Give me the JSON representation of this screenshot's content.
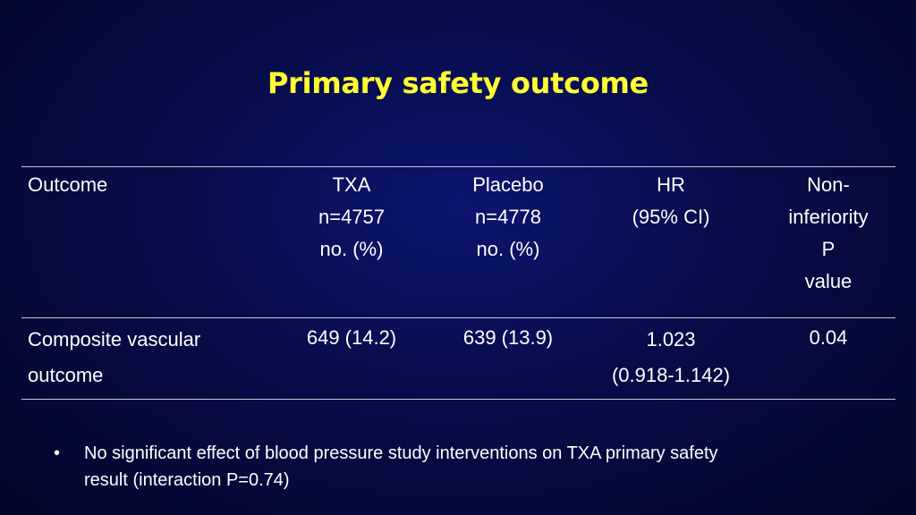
{
  "slide": {
    "title": "Primary safety outcome"
  },
  "table": {
    "headers": {
      "outcome": [
        "Outcome"
      ],
      "txa": [
        "TXA",
        "n=4757",
        "no. (%)"
      ],
      "placebo": [
        "Placebo",
        "n=4778",
        "no. (%)"
      ],
      "hr": [
        "HR",
        "(95% CI)"
      ],
      "noninferiority": [
        "Non-",
        "inferiority",
        "P",
        "value"
      ]
    },
    "rows": [
      {
        "outcome": [
          "Composite vascular",
          "outcome"
        ],
        "txa": "649 (14.2)",
        "placebo": "639 (13.9)",
        "hr": [
          "1.023",
          "(0.918-1.142)"
        ],
        "p_value": "0.04"
      }
    ]
  },
  "bullets": [
    {
      "symbol": "•",
      "lines": [
        "No significant effect of blood pressure study interventions on TXA primary safety",
        "result (interaction P=0.74)"
      ]
    }
  ]
}
